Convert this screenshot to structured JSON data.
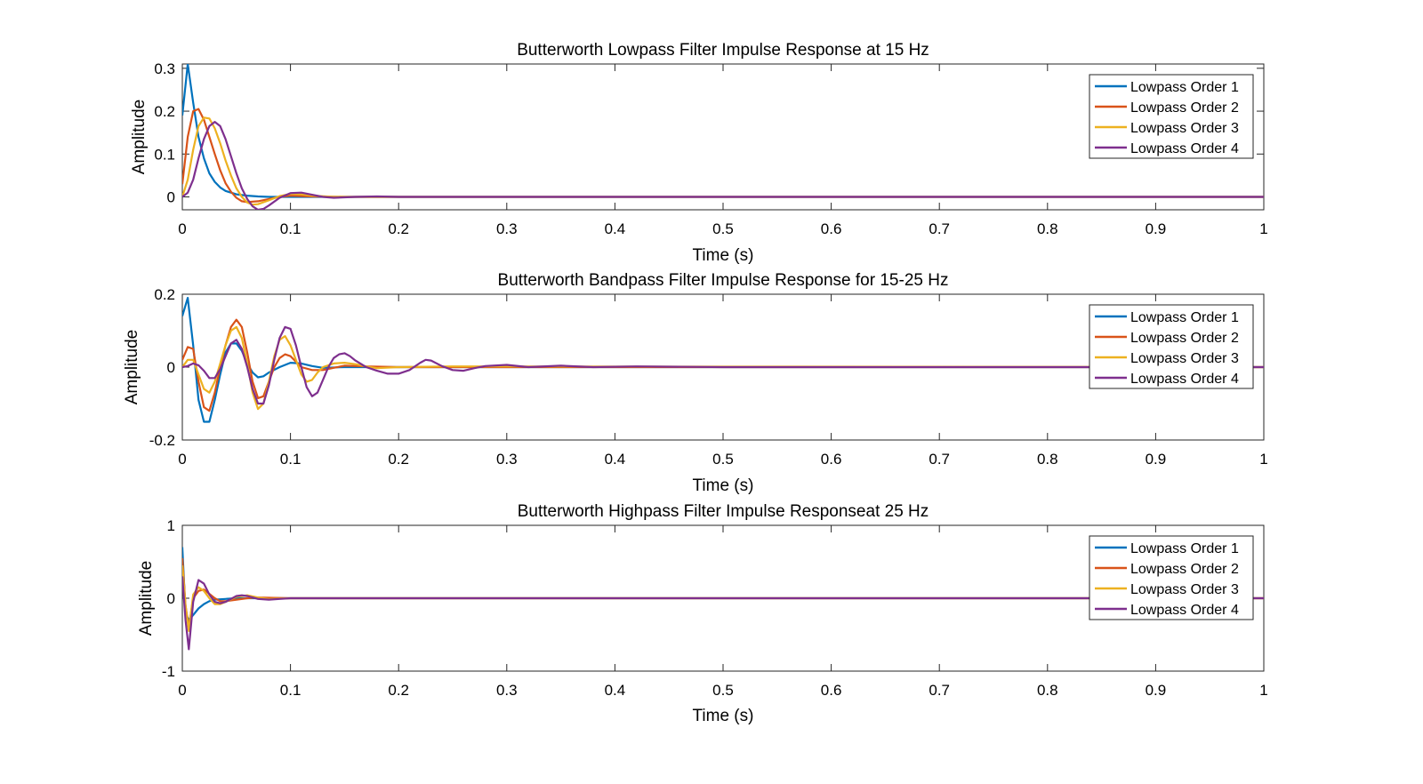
{
  "chart_data": [
    {
      "type": "line",
      "title": "Butterworth Lowpass Filter Impulse Response at 15 Hz",
      "xlabel": "Time (s)",
      "ylabel": "Amplitude",
      "xlim": [
        0,
        1
      ],
      "ylim": [
        -0.03,
        0.31
      ],
      "xticks": [
        "0",
        "0.1",
        "0.2",
        "0.3",
        "0.4",
        "0.5",
        "0.6",
        "0.7",
        "0.8",
        "0.9",
        "1"
      ],
      "yticks": [
        "0",
        "0.1",
        "0.2",
        "0.3"
      ],
      "legend": "top-right",
      "series": [
        {
          "name": "Lowpass Order 1",
          "color": "#0072BD",
          "x": [
            0,
            0.005,
            0.01,
            0.015,
            0.02,
            0.025,
            0.03,
            0.035,
            0.04,
            0.05,
            0.06,
            0.07,
            0.08,
            0.1,
            0.15,
            1.0
          ],
          "y": [
            0.19,
            0.31,
            0.22,
            0.14,
            0.09,
            0.055,
            0.035,
            0.022,
            0.014,
            0.006,
            0.003,
            0.001,
            0.0,
            0.0,
            0.0,
            0.0
          ]
        },
        {
          "name": "Lowpass Order 2",
          "color": "#D95319",
          "x": [
            0,
            0.005,
            0.01,
            0.015,
            0.02,
            0.025,
            0.03,
            0.035,
            0.04,
            0.045,
            0.05,
            0.055,
            0.06,
            0.07,
            0.08,
            0.09,
            0.1,
            0.12,
            0.15,
            0.2,
            1.0
          ],
          "y": [
            0.03,
            0.14,
            0.2,
            0.205,
            0.18,
            0.14,
            0.1,
            0.062,
            0.032,
            0.012,
            -0.002,
            -0.01,
            -0.012,
            -0.01,
            -0.005,
            0.0,
            0.003,
            0.001,
            0.0,
            0.0,
            0.0
          ]
        },
        {
          "name": "Lowpass Order 3",
          "color": "#EDB120",
          "x": [
            0,
            0.005,
            0.01,
            0.015,
            0.02,
            0.025,
            0.03,
            0.035,
            0.04,
            0.045,
            0.05,
            0.055,
            0.06,
            0.065,
            0.07,
            0.08,
            0.09,
            0.1,
            0.11,
            0.12,
            0.14,
            0.18,
            1.0
          ],
          "y": [
            0.0,
            0.04,
            0.11,
            0.165,
            0.185,
            0.183,
            0.16,
            0.125,
            0.085,
            0.05,
            0.02,
            0.0,
            -0.013,
            -0.018,
            -0.017,
            -0.008,
            0.002,
            0.007,
            0.006,
            0.003,
            0.0,
            0.0,
            0.0
          ]
        },
        {
          "name": "Lowpass Order 4",
          "color": "#7E2F8E",
          "x": [
            0,
            0.005,
            0.01,
            0.015,
            0.02,
            0.025,
            0.03,
            0.035,
            0.04,
            0.045,
            0.05,
            0.055,
            0.06,
            0.065,
            0.07,
            0.075,
            0.08,
            0.09,
            0.1,
            0.11,
            0.12,
            0.13,
            0.14,
            0.16,
            0.18,
            0.2,
            1.0
          ],
          "y": [
            0.0,
            0.01,
            0.04,
            0.09,
            0.135,
            0.165,
            0.175,
            0.165,
            0.135,
            0.095,
            0.055,
            0.02,
            -0.005,
            -0.022,
            -0.03,
            -0.028,
            -0.02,
            -0.002,
            0.009,
            0.01,
            0.005,
            0.0,
            -0.002,
            0.0,
            0.001,
            0.0,
            0.0
          ]
        }
      ]
    },
    {
      "type": "line",
      "title": "Butterworth Bandpass Filter Impulse Response for 15-25 Hz",
      "xlabel": "Time (s)",
      "ylabel": "Amplitude",
      "xlim": [
        0,
        1
      ],
      "ylim": [
        -0.2,
        0.2
      ],
      "xticks": [
        "0",
        "0.1",
        "0.2",
        "0.3",
        "0.4",
        "0.5",
        "0.6",
        "0.7",
        "0.8",
        "0.9",
        "1"
      ],
      "yticks": [
        "-0.2",
        "0",
        "0.2"
      ],
      "legend": "top-right",
      "series": [
        {
          "name": "Lowpass Order 1",
          "color": "#0072BD",
          "x": [
            0,
            0.005,
            0.01,
            0.015,
            0.02,
            0.025,
            0.03,
            0.035,
            0.04,
            0.045,
            0.05,
            0.055,
            0.06,
            0.065,
            0.07,
            0.075,
            0.08,
            0.09,
            0.1,
            0.11,
            0.12,
            0.13,
            0.15,
            0.2,
            1.0
          ],
          "y": [
            0.14,
            0.19,
            0.06,
            -0.09,
            -0.15,
            -0.15,
            -0.09,
            -0.02,
            0.04,
            0.065,
            0.065,
            0.045,
            0.01,
            -0.015,
            -0.028,
            -0.025,
            -0.015,
            0.0,
            0.012,
            0.01,
            0.003,
            -0.002,
            0.0,
            0.0,
            0.0
          ]
        },
        {
          "name": "Lowpass Order 2",
          "color": "#D95319",
          "x": [
            0,
            0.005,
            0.01,
            0.015,
            0.02,
            0.025,
            0.03,
            0.035,
            0.04,
            0.045,
            0.05,
            0.055,
            0.06,
            0.065,
            0.07,
            0.075,
            0.08,
            0.085,
            0.09,
            0.095,
            0.1,
            0.105,
            0.11,
            0.12,
            0.13,
            0.14,
            0.15,
            0.17,
            0.2,
            1.0
          ],
          "y": [
            0.02,
            0.055,
            0.05,
            -0.04,
            -0.11,
            -0.12,
            -0.07,
            0.0,
            0.06,
            0.11,
            0.13,
            0.11,
            0.04,
            -0.04,
            -0.085,
            -0.08,
            -0.04,
            0.0,
            0.025,
            0.035,
            0.03,
            0.015,
            0.0,
            -0.008,
            -0.008,
            -0.002,
            0.004,
            0.002,
            0.0,
            0.0
          ]
        },
        {
          "name": "Lowpass Order 3",
          "color": "#EDB120",
          "x": [
            0,
            0.005,
            0.01,
            0.015,
            0.02,
            0.025,
            0.03,
            0.035,
            0.04,
            0.045,
            0.05,
            0.055,
            0.06,
            0.065,
            0.07,
            0.075,
            0.08,
            0.085,
            0.09,
            0.095,
            0.1,
            0.105,
            0.11,
            0.115,
            0.12,
            0.125,
            0.13,
            0.14,
            0.15,
            0.16,
            0.17,
            0.18,
            0.2,
            0.25,
            1.0
          ],
          "y": [
            0.0,
            0.02,
            0.02,
            -0.02,
            -0.06,
            -0.07,
            -0.04,
            0.01,
            0.06,
            0.1,
            0.11,
            0.08,
            0.01,
            -0.07,
            -0.115,
            -0.1,
            -0.04,
            0.03,
            0.075,
            0.085,
            0.06,
            0.02,
            -0.02,
            -0.04,
            -0.035,
            -0.015,
            0.0,
            0.01,
            0.012,
            0.008,
            0.002,
            -0.003,
            0.0,
            0.002,
            0.0
          ]
        },
        {
          "name": "Lowpass Order 4",
          "color": "#7E2F8E",
          "x": [
            0,
            0.005,
            0.01,
            0.015,
            0.02,
            0.025,
            0.03,
            0.035,
            0.04,
            0.045,
            0.05,
            0.055,
            0.06,
            0.065,
            0.07,
            0.075,
            0.08,
            0.085,
            0.09,
            0.095,
            0.1,
            0.105,
            0.11,
            0.115,
            0.12,
            0.125,
            0.13,
            0.135,
            0.14,
            0.145,
            0.15,
            0.155,
            0.16,
            0.17,
            0.18,
            0.19,
            0.2,
            0.21,
            0.22,
            0.225,
            0.23,
            0.24,
            0.25,
            0.26,
            0.27,
            0.28,
            0.3,
            0.32,
            0.35,
            0.38,
            0.42,
            0.5,
            1.0
          ],
          "y": [
            0.0,
            0.003,
            0.01,
            0.005,
            -0.01,
            -0.03,
            -0.03,
            -0.005,
            0.03,
            0.065,
            0.075,
            0.05,
            0.0,
            -0.06,
            -0.1,
            -0.1,
            -0.05,
            0.02,
            0.08,
            0.11,
            0.105,
            0.06,
            0.0,
            -0.055,
            -0.08,
            -0.07,
            -0.035,
            0.0,
            0.025,
            0.035,
            0.038,
            0.03,
            0.018,
            0.0,
            -0.01,
            -0.018,
            -0.018,
            -0.008,
            0.012,
            0.02,
            0.018,
            0.003,
            -0.008,
            -0.01,
            -0.003,
            0.003,
            0.006,
            0.0,
            0.004,
            0.0,
            0.002,
            0.0,
            0.0
          ]
        }
      ]
    },
    {
      "type": "line",
      "title": "Butterworth Highpass Filter Impulse Responseat 25 Hz",
      "xlabel": "Time (s)",
      "ylabel": "Amplitude",
      "xlim": [
        0,
        1
      ],
      "ylim": [
        -1,
        1
      ],
      "xticks": [
        "0",
        "0.1",
        "0.2",
        "0.3",
        "0.4",
        "0.5",
        "0.6",
        "0.7",
        "0.8",
        "0.9",
        "1"
      ],
      "yticks": [
        "-1",
        "0",
        "1"
      ],
      "legend": "top-right",
      "series": [
        {
          "name": "Lowpass Order 1",
          "color": "#0072BD",
          "x": [
            0,
            0.003,
            0.006,
            0.01,
            0.015,
            0.02,
            0.025,
            0.03,
            0.04,
            0.05,
            0.06,
            0.08,
            1.0
          ],
          "y": [
            0.7,
            -0.2,
            -0.3,
            -0.23,
            -0.14,
            -0.08,
            -0.04,
            -0.02,
            -0.01,
            0.0,
            0.0,
            0.0,
            0.0
          ]
        },
        {
          "name": "Lowpass Order 2",
          "color": "#D95319",
          "x": [
            0,
            0.003,
            0.006,
            0.01,
            0.015,
            0.02,
            0.025,
            0.03,
            0.035,
            0.04,
            0.05,
            0.06,
            0.07,
            0.1,
            1.0
          ],
          "y": [
            0.55,
            -0.1,
            -0.4,
            0.0,
            0.1,
            0.12,
            0.06,
            0.0,
            -0.04,
            -0.04,
            -0.02,
            0.0,
            0.01,
            0.0,
            0.0
          ]
        },
        {
          "name": "Lowpass Order 3",
          "color": "#EDB120",
          "x": [
            0,
            0.003,
            0.006,
            0.01,
            0.015,
            0.02,
            0.025,
            0.03,
            0.035,
            0.04,
            0.05,
            0.06,
            0.07,
            0.08,
            0.1,
            1.0
          ],
          "y": [
            0.45,
            -0.1,
            -0.45,
            0.05,
            0.15,
            0.1,
            0.0,
            -0.08,
            -0.08,
            -0.05,
            0.02,
            0.04,
            0.01,
            -0.01,
            0.0,
            0.0
          ]
        },
        {
          "name": "Lowpass Order 4",
          "color": "#7E2F8E",
          "x": [
            0,
            0.003,
            0.006,
            0.01,
            0.015,
            0.02,
            0.025,
            0.03,
            0.035,
            0.04,
            0.045,
            0.05,
            0.055,
            0.06,
            0.07,
            0.08,
            0.09,
            0.1,
            1.0
          ],
          "y": [
            0.3,
            -0.3,
            -0.7,
            -0.05,
            0.25,
            0.2,
            0.05,
            -0.05,
            -0.07,
            -0.05,
            -0.01,
            0.03,
            0.04,
            0.03,
            -0.01,
            -0.02,
            -0.01,
            0.0,
            0.0
          ]
        }
      ]
    }
  ]
}
